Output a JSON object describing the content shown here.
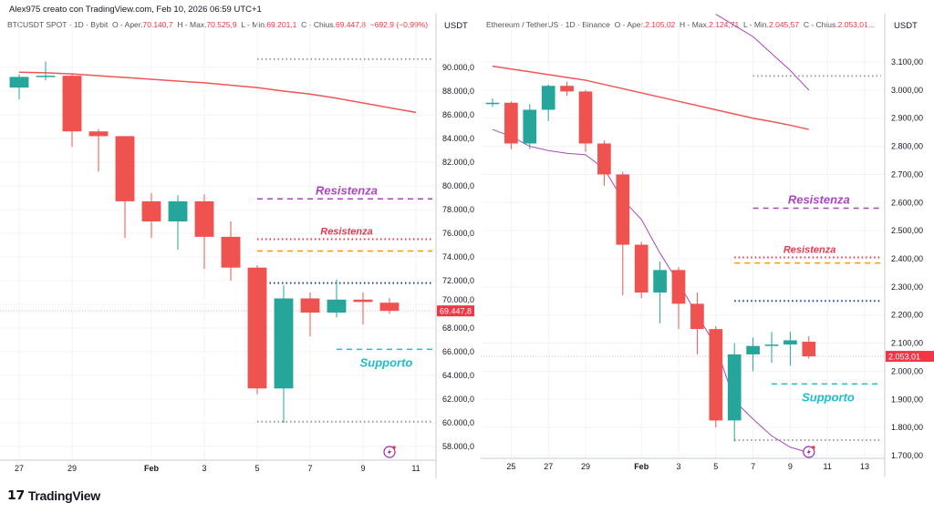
{
  "credit": "Alex975 creato con TradingView.com, Feb 10, 2026 06:59 UTC+1",
  "brand": {
    "name": "TradingView",
    "logo": "TV"
  },
  "colors": {
    "up": "#26a69a",
    "down": "#ef5350",
    "ma": "#f05656",
    "purple": "#ab47bc",
    "resist": "#e53950",
    "orange": "#ff9800",
    "blue": "#1c3fa8",
    "cyan": "#22bcd0",
    "gray": "#9e9e9e"
  },
  "charts": [
    {
      "legend": {
        "symbol": "BTCUSDT SPOT · 1D · Bybit",
        "o_label": "O - Aper.",
        "o": "70.140,7",
        "h_label": "H - Max.",
        "h": "70.525,9",
        "l_label": "L - Min.",
        "l": "69.201,1",
        "c_label": "C - Chius.",
        "c": "69.447,8",
        "change": "−692,9 (−0,99%)"
      },
      "unit": "USDT",
      "y_ticks": [
        "90.000,0",
        "88.000,0",
        "86.000,0",
        "84.000,0",
        "82.000,0",
        "80.000,0",
        "78.000,0",
        "76.000,0",
        "74.000,0",
        "72.000,0",
        "70.000,0",
        "68.000,0",
        "66.000,0",
        "64.000,0",
        "62.000,0",
        "60.000,0",
        "58.000,0"
      ],
      "y_range": [
        58000,
        90000
      ],
      "x_ticks": [
        {
          "label": "27",
          "day": 0
        },
        {
          "label": "29",
          "day": 2
        },
        {
          "label": "Feb",
          "day": 5
        },
        {
          "label": "3",
          "day": 7
        },
        {
          "label": "5",
          "day": 9
        },
        {
          "label": "7",
          "day": 11
        },
        {
          "label": "9",
          "day": 13
        },
        {
          "label": "11",
          "day": 15
        }
      ],
      "price_tag": {
        "value": 69447.8,
        "label": "69.447,8"
      },
      "candles": [
        {
          "d": "Jan 27",
          "o": 88300,
          "h": 89400,
          "l": 87300,
          "c": 89200
        },
        {
          "d": "Jan 28",
          "o": 89200,
          "h": 90500,
          "l": 88900,
          "c": 89300
        },
        {
          "d": "Jan 29",
          "o": 89300,
          "h": 89400,
          "l": 83300,
          "c": 84600
        },
        {
          "d": "Jan 30",
          "o": 84600,
          "h": 84800,
          "l": 81200,
          "c": 84200
        },
        {
          "d": "Jan 31",
          "o": 84200,
          "h": 84200,
          "l": 75600,
          "c": 78700
        },
        {
          "d": "Feb 1",
          "o": 78700,
          "h": 79400,
          "l": 75600,
          "c": 77000
        },
        {
          "d": "Feb 2",
          "o": 77000,
          "h": 79200,
          "l": 74600,
          "c": 78700
        },
        {
          "d": "Feb 3",
          "o": 78700,
          "h": 79300,
          "l": 73000,
          "c": 75700
        },
        {
          "d": "Feb 4",
          "o": 75700,
          "h": 77000,
          "l": 72000,
          "c": 73100
        },
        {
          "d": "Feb 5",
          "o": 73100,
          "h": 73300,
          "l": 62400,
          "c": 62900
        },
        {
          "d": "Feb 6",
          "o": 62900,
          "h": 71600,
          "l": 60000,
          "c": 70500
        },
        {
          "d": "Feb 7",
          "o": 70500,
          "h": 71000,
          "l": 67300,
          "c": 69300
        },
        {
          "d": "Feb 8",
          "o": 69300,
          "h": 72100,
          "l": 68900,
          "c": 70400
        },
        {
          "d": "Feb 9",
          "o": 70400,
          "h": 71000,
          "l": 68300,
          "c": 70200
        },
        {
          "d": "Feb 10",
          "o": 70140.7,
          "h": 70525.9,
          "l": 69201.1,
          "c": 69447.8
        }
      ],
      "indicators": [
        {
          "color": "ma",
          "values": [
            89600,
            89550,
            89450,
            89300,
            89150,
            89000,
            88850,
            88700,
            88500,
            88300,
            88000,
            87750,
            87400,
            87000,
            86600,
            86200
          ]
        }
      ],
      "levels": [
        {
          "value": 90700,
          "style": "dotted",
          "color": "gray",
          "from_day": 9
        },
        {
          "value": 78900,
          "style": "dashed",
          "color": "purple",
          "from_day": 9,
          "label": "Resistenza"
        },
        {
          "value": 75500,
          "style": "dotted",
          "color": "resist",
          "from_day": 9,
          "label": "Resistenza"
        },
        {
          "value": 74500,
          "style": "dashed",
          "color": "orange",
          "from_day": 9
        },
        {
          "value": 71800,
          "style": "dotted",
          "color": "blue",
          "from_day": 9
        },
        {
          "value": 66200,
          "style": "dashed",
          "color": "cyan",
          "from_day": 12,
          "label": "Supporto"
        },
        {
          "value": 60100,
          "style": "dotted",
          "color": "gray",
          "from_day": 9
        }
      ],
      "alert_icon": "lightning-icon"
    },
    {
      "legend": {
        "symbol": "Ethereum / TetherUS · 1D · Binance",
        "o_label": "O - Aper.",
        "o": "2.105,02",
        "h_label": "H - Max.",
        "h": "2.124,71",
        "l_label": "L - Min.",
        "l": "2.045,57",
        "c_label": "C - Chius.",
        "c": "2.053,01...",
        "change": ""
      },
      "unit": "USDT",
      "y_ticks": [
        "3.100,00",
        "3.000,00",
        "2.900,00",
        "2.800,00",
        "2.700,00",
        "2.600,00",
        "2.500,00",
        "2.400,00",
        "2.300,00",
        "2.200,00",
        "2.100,00",
        "2.000,00",
        "1.900,00",
        "1.800,00",
        "1.700,00"
      ],
      "y_range": [
        1700,
        3100
      ],
      "x_ticks": [
        {
          "label": "25",
          "day": 1
        },
        {
          "label": "27",
          "day": 3
        },
        {
          "label": "29",
          "day": 5
        },
        {
          "label": "Feb",
          "day": 8
        },
        {
          "label": "3",
          "day": 10
        },
        {
          "label": "5",
          "day": 12
        },
        {
          "label": "7",
          "day": 14
        },
        {
          "label": "9",
          "day": 16
        },
        {
          "label": "11",
          "day": 18
        },
        {
          "label": "13",
          "day": 20
        }
      ],
      "price_tag": {
        "value": 2053.01,
        "label": "2.053,01"
      },
      "candles": [
        {
          "d": "Jan 24",
          "o": 2950,
          "h": 2970,
          "l": 2940,
          "c": 2955
        },
        {
          "d": "Jan 25",
          "o": 2955,
          "h": 2960,
          "l": 2790,
          "c": 2810
        },
        {
          "d": "Jan 26",
          "o": 2810,
          "h": 2950,
          "l": 2790,
          "c": 2930
        },
        {
          "d": "Jan 27",
          "o": 2930,
          "h": 3020,
          "l": 2890,
          "c": 3015
        },
        {
          "d": "Jan 28",
          "o": 3015,
          "h": 3030,
          "l": 2980,
          "c": 2995
        },
        {
          "d": "Jan 29",
          "o": 2995,
          "h": 3000,
          "l": 2780,
          "c": 2810
        },
        {
          "d": "Jan 30",
          "o": 2810,
          "h": 2820,
          "l": 2660,
          "c": 2700
        },
        {
          "d": "Jan 31",
          "o": 2700,
          "h": 2710,
          "l": 2270,
          "c": 2450
        },
        {
          "d": "Feb 1",
          "o": 2450,
          "h": 2460,
          "l": 2260,
          "c": 2280
        },
        {
          "d": "Feb 2",
          "o": 2280,
          "h": 2390,
          "l": 2170,
          "c": 2360
        },
        {
          "d": "Feb 3",
          "o": 2360,
          "h": 2370,
          "l": 2150,
          "c": 2240
        },
        {
          "d": "Feb 4",
          "o": 2240,
          "h": 2280,
          "l": 2060,
          "c": 2150
        },
        {
          "d": "Feb 5",
          "o": 2150,
          "h": 2160,
          "l": 1800,
          "c": 1825
        },
        {
          "d": "Feb 6",
          "o": 1825,
          "h": 2100,
          "l": 1750,
          "c": 2060
        },
        {
          "d": "Feb 7",
          "o": 2060,
          "h": 2120,
          "l": 2000,
          "c": 2090
        },
        {
          "d": "Feb 8",
          "o": 2090,
          "h": 2140,
          "l": 2030,
          "c": 2095
        },
        {
          "d": "Feb 9",
          "o": 2095,
          "h": 2140,
          "l": 2020,
          "c": 2110
        },
        {
          "d": "Feb 10",
          "o": 2105.02,
          "h": 2124.71,
          "l": 2045.57,
          "c": 2053.01
        }
      ],
      "indicators": [
        {
          "color": "ma",
          "values": [
            3085,
            3075,
            3065,
            3055,
            3045,
            3035,
            3020,
            3005,
            2990,
            2975,
            2960,
            2945,
            2930,
            2915,
            2900,
            2888,
            2875,
            2860
          ]
        },
        {
          "color": "purple",
          "values": [
            2860,
            2835,
            2800,
            2785,
            2775,
            2770,
            2720,
            2610,
            2540,
            2420,
            2315,
            2200,
            2090,
            1895,
            1830,
            1770,
            1730,
            1710
          ]
        },
        {
          "color": "purple",
          "start_day": 12,
          "values": [
            3270,
            3230,
            3190,
            3130,
            3070,
            3000
          ]
        }
      ],
      "levels": [
        {
          "value": 3050,
          "style": "dotted",
          "color": "gray",
          "from_day": 14
        },
        {
          "value": 2580,
          "style": "dashed",
          "color": "purple",
          "from_day": 14,
          "label": "Resistenza"
        },
        {
          "value": 2405,
          "style": "dotted",
          "color": "resist",
          "from_day": 13,
          "label": "Resistenza"
        },
        {
          "value": 2385,
          "style": "dashed",
          "color": "orange",
          "from_day": 13
        },
        {
          "value": 2250,
          "style": "dotted",
          "color": "blue",
          "from_day": 13
        },
        {
          "value": 1955,
          "style": "dashed",
          "color": "cyan",
          "from_day": 15,
          "label": "Supporto"
        },
        {
          "value": 1755,
          "style": "dotted",
          "color": "gray",
          "from_day": 13
        }
      ],
      "alert_icon": "lightning-icon"
    }
  ]
}
